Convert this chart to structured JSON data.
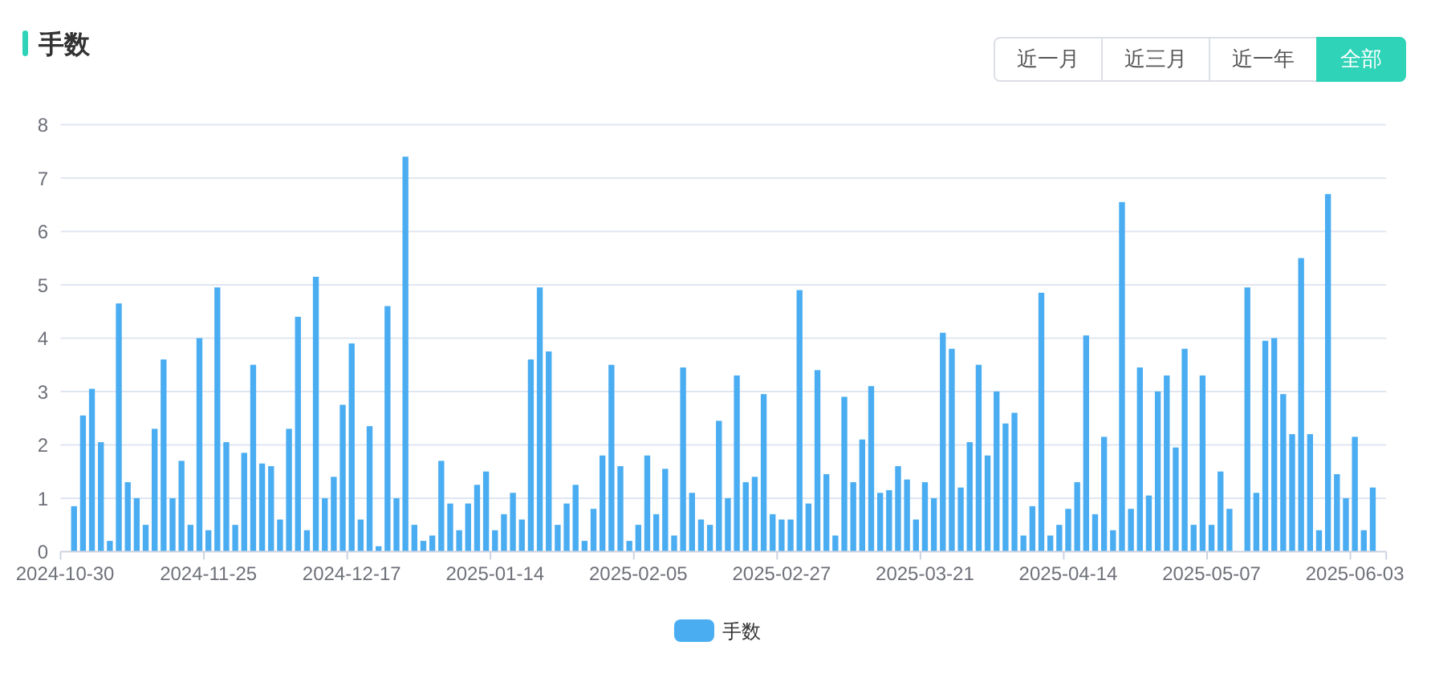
{
  "chart_data": {
    "type": "bar",
    "title": "手数",
    "categories": [
      "2024-10-30",
      null,
      null,
      null,
      null,
      null,
      null,
      null,
      null,
      null,
      null,
      null,
      null,
      null,
      null,
      null,
      "2024-11-25",
      null,
      null,
      null,
      null,
      null,
      null,
      null,
      null,
      null,
      null,
      null,
      null,
      null,
      null,
      null,
      "2024-12-17",
      null,
      null,
      null,
      null,
      null,
      null,
      null,
      null,
      null,
      null,
      null,
      null,
      null,
      null,
      null,
      "2025-01-14",
      null,
      null,
      null,
      null,
      null,
      null,
      null,
      null,
      null,
      null,
      null,
      null,
      null,
      null,
      null,
      "2025-02-05",
      null,
      null,
      null,
      null,
      null,
      null,
      null,
      null,
      null,
      null,
      null,
      null,
      null,
      null,
      null,
      "2025-02-27",
      null,
      null,
      null,
      null,
      null,
      null,
      null,
      null,
      null,
      null,
      null,
      null,
      null,
      null,
      null,
      "2025-03-21",
      null,
      null,
      null,
      null,
      null,
      null,
      null,
      null,
      null,
      null,
      null,
      null,
      null,
      null,
      null,
      "2025-04-14",
      null,
      null,
      null,
      null,
      null,
      null,
      null,
      null,
      null,
      null,
      null,
      null,
      null,
      null,
      null,
      "2025-05-07",
      null,
      null,
      null,
      null,
      null,
      null,
      null,
      null,
      null,
      null,
      null,
      null,
      null,
      null,
      null,
      "2025-06-03",
      null,
      null,
      null
    ],
    "series": [
      {
        "name": "手数",
        "color": "#4aadf2",
        "values": [
          null,
          0.85,
          2.55,
          3.05,
          2.05,
          0.2,
          4.65,
          1.3,
          1.0,
          0.5,
          2.3,
          3.6,
          1.0,
          1.7,
          0.5,
          4.0,
          0.4,
          4.95,
          2.05,
          0.5,
          1.85,
          3.5,
          1.65,
          1.6,
          0.6,
          2.3,
          4.4,
          0.4,
          5.15,
          1.0,
          1.4,
          2.75,
          3.9,
          0.6,
          2.35,
          0.1,
          4.6,
          1.0,
          7.4,
          0.5,
          0.2,
          0.3,
          1.7,
          0.9,
          0.4,
          0.9,
          1.25,
          1.5,
          0.4,
          0.7,
          1.1,
          0.6,
          3.6,
          4.95,
          3.75,
          0.5,
          0.9,
          1.25,
          0.2,
          0.8,
          1.8,
          3.5,
          1.6,
          0.2,
          0.5,
          1.8,
          0.7,
          1.55,
          0.3,
          3.45,
          1.1,
          0.6,
          0.5,
          2.45,
          1.0,
          3.3,
          1.3,
          1.4,
          2.95,
          0.7,
          0.6,
          0.6,
          4.9,
          0.9,
          3.4,
          1.45,
          0.3,
          2.9,
          1.3,
          2.1,
          3.1,
          1.1,
          1.15,
          1.6,
          1.35,
          0.6,
          1.3,
          1.0,
          4.1,
          3.8,
          1.2,
          2.05,
          3.5,
          1.8,
          3.0,
          2.4,
          2.6,
          0.3,
          0.85,
          4.85,
          0.3,
          0.5,
          0.8,
          1.3,
          4.05,
          0.7,
          2.15,
          0.4,
          6.55,
          0.8,
          3.45,
          1.05,
          3.0,
          3.3,
          1.95,
          3.8,
          0.5,
          3.3,
          0.5,
          1.5,
          0.8,
          null,
          4.95,
          1.1,
          3.95,
          4.0,
          2.95,
          2.2,
          5.5,
          2.2,
          0.4,
          6.7,
          1.45,
          1.0,
          2.15,
          0.4,
          1.2,
          null
        ]
      }
    ],
    "ylim": [
      0,
      8
    ],
    "yticks": [
      0,
      1,
      2,
      3,
      4,
      5,
      6,
      7,
      8
    ],
    "grid": "y",
    "legend": "bottom",
    "annotations": [
      "近一月",
      "近三月",
      "近一年",
      "全部"
    ]
  }
}
